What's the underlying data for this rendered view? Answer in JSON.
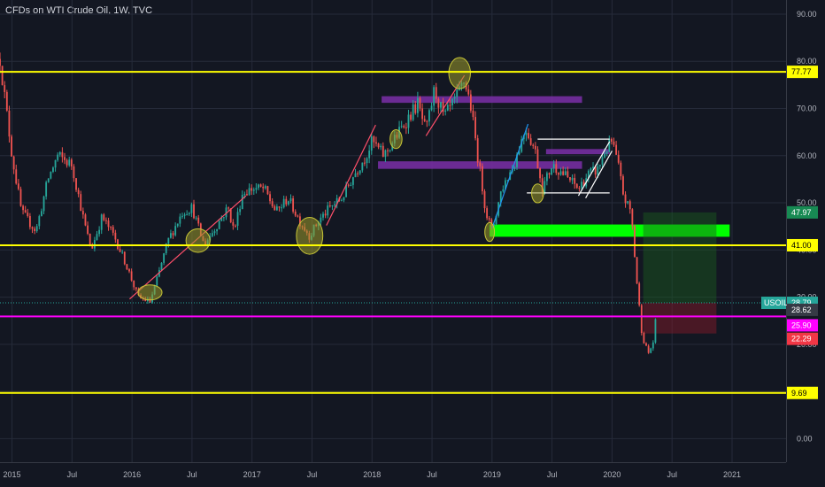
{
  "title": "CFDs on WTI Crude Oil, 1W, TVC",
  "chart_data": {
    "type": "candlestick",
    "symbol": "USOIL",
    "ylim": [
      -5,
      93
    ],
    "y_ticks": [
      0,
      10,
      20,
      30,
      40,
      50,
      60,
      70,
      80,
      90
    ],
    "y_tick_labels": [
      "0.00",
      "10.00",
      "20.00",
      "30.00",
      "40.00",
      "50.00",
      "60.00",
      "70.00",
      "80.00",
      "90.00"
    ],
    "x_range": [
      2014.9,
      2021.45
    ],
    "x_ticks": [
      2015,
      2015.5,
      2016,
      2016.5,
      2017,
      2017.5,
      2018,
      2018.5,
      2019,
      2019.5,
      2020,
      2020.5,
      2021
    ],
    "x_tick_labels": [
      "2015",
      "Jul",
      "2016",
      "Jul",
      "2017",
      "Jul",
      "2018",
      "Jul",
      "2019",
      "Jul",
      "2020",
      "Jul",
      "2021"
    ],
    "price_path": [
      [
        2014.9,
        80.5
      ],
      [
        2015.0,
        60
      ],
      [
        2015.08,
        48
      ],
      [
        2015.2,
        44
      ],
      [
        2015.3,
        55
      ],
      [
        2015.38,
        60
      ],
      [
        2015.5,
        58
      ],
      [
        2015.6,
        46
      ],
      [
        2015.66,
        40
      ],
      [
        2015.75,
        47
      ],
      [
        2015.85,
        43
      ],
      [
        2015.95,
        37
      ],
      [
        2016.05,
        30
      ],
      [
        2016.15,
        29
      ],
      [
        2016.2,
        33
      ],
      [
        2016.3,
        42
      ],
      [
        2016.42,
        48
      ],
      [
        2016.5,
        49
      ],
      [
        2016.6,
        41
      ],
      [
        2016.7,
        45
      ],
      [
        2016.8,
        49
      ],
      [
        2016.85,
        44
      ],
      [
        2016.92,
        52
      ],
      [
        2017.0,
        53
      ],
      [
        2017.1,
        53
      ],
      [
        2017.2,
        48
      ],
      [
        2017.3,
        51
      ],
      [
        2017.4,
        46
      ],
      [
        2017.48,
        43
      ],
      [
        2017.55,
        46
      ],
      [
        2017.65,
        49
      ],
      [
        2017.75,
        51
      ],
      [
        2017.85,
        56
      ],
      [
        2017.95,
        60
      ],
      [
        2018.0,
        63
      ],
      [
        2018.1,
        60
      ],
      [
        2018.2,
        64
      ],
      [
        2018.3,
        68
      ],
      [
        2018.38,
        71
      ],
      [
        2018.45,
        65
      ],
      [
        2018.52,
        74
      ],
      [
        2018.6,
        68
      ],
      [
        2018.7,
        72
      ],
      [
        2018.77,
        76
      ],
      [
        2018.82,
        71
      ],
      [
        2018.88,
        60
      ],
      [
        2018.95,
        48
      ],
      [
        2019.0,
        44
      ],
      [
        2019.08,
        53
      ],
      [
        2019.18,
        58
      ],
      [
        2019.28,
        66
      ],
      [
        2019.36,
        61
      ],
      [
        2019.42,
        53
      ],
      [
        2019.5,
        58
      ],
      [
        2019.56,
        57
      ],
      [
        2019.64,
        55
      ],
      [
        2019.72,
        53
      ],
      [
        2019.8,
        56
      ],
      [
        2019.88,
        57
      ],
      [
        2019.94,
        61
      ],
      [
        2020.0,
        63
      ],
      [
        2020.05,
        58
      ],
      [
        2020.1,
        51
      ],
      [
        2020.16,
        48
      ],
      [
        2020.2,
        35
      ],
      [
        2020.25,
        22
      ],
      [
        2020.3,
        18
      ],
      [
        2020.34,
        20
      ],
      [
        2020.38,
        28.79
      ]
    ],
    "horizontal_levels": [
      {
        "price": 77.77,
        "label": "77.77",
        "color": "#ffff00"
      },
      {
        "price": 41.0,
        "label": "41.00",
        "color": "#ffff00"
      },
      {
        "price": 9.69,
        "label": "9.69",
        "color": "#ffff00"
      },
      {
        "price": 25.9,
        "label": "25.90",
        "color": "#ff00ff"
      }
    ],
    "price_tags": [
      {
        "price": 47.97,
        "label": "47.97",
        "color": "#178a53",
        "text_color": "#ffffff"
      },
      {
        "price": 28.79,
        "label": "28.79",
        "color": "#26a69a",
        "text_color": "#ffffff",
        "symbol": "USOIL"
      },
      {
        "price": 28.62,
        "label": "28.62",
        "color": "#363a45",
        "text_color": "#ffffff"
      },
      {
        "price": 25.9,
        "label": "25.90",
        "color": "#ff00ff",
        "text_color": "#ffffff"
      },
      {
        "price": 22.29,
        "label": "22.29",
        "color": "#f23645",
        "text_color": "#ffffff"
      }
    ],
    "zones": [
      {
        "x0": 2018.08,
        "x1": 2019.75,
        "y0": 71.2,
        "y1": 72.6,
        "color": "#7b2fa8"
      },
      {
        "x0": 2018.05,
        "x1": 2019.75,
        "y0": 57.2,
        "y1": 58.8,
        "color": "#7b2fa8"
      },
      {
        "x0": 2019.45,
        "x1": 2019.98,
        "y0": 60.3,
        "y1": 61.4,
        "color": "#7b2fa8"
      },
      {
        "x0": 2018.98,
        "x1": 2020.98,
        "y0": 42.8,
        "y1": 45.4,
        "color": "#00ff00"
      }
    ],
    "position": {
      "x0": 2020.26,
      "x1": 2020.87,
      "entry": 28.79,
      "target": 47.97,
      "stop": 22.29
    },
    "trend_lines": [
      {
        "x0": 2015.98,
        "y0": 29.6,
        "x1": 2016.95,
        "y1": 51.5,
        "color": "#ff4f6a"
      },
      {
        "x0": 2017.62,
        "y0": 45.2,
        "x1": 2018.03,
        "y1": 66.5,
        "color": "#ff4f6a"
      },
      {
        "x0": 2018.45,
        "y0": 64.2,
        "x1": 2018.77,
        "y1": 77.0,
        "color": "#ff4f6a"
      },
      {
        "x0": 2019.0,
        "y0": 44.6,
        "x1": 2019.3,
        "y1": 66.7,
        "color": "#2196f3"
      },
      {
        "x0": 2019.38,
        "y0": 63.5,
        "x1": 2019.98,
        "y1": 63.5,
        "color": "#ffffff"
      },
      {
        "x0": 2019.29,
        "y0": 52.1,
        "x1": 2019.98,
        "y1": 52.1,
        "color": "#ffffff"
      },
      {
        "x0": 2019.72,
        "y0": 51.5,
        "x1": 2019.98,
        "y1": 63.0,
        "color": "#ffffff"
      },
      {
        "x0": 2019.78,
        "y0": 51.0,
        "x1": 2020.0,
        "y1": 61.0,
        "color": "#ffffff"
      }
    ],
    "highlight_ellipses": [
      {
        "x": 2016.15,
        "y": 31.0,
        "rx": 0.1,
        "ry": 1.6
      },
      {
        "x": 2016.55,
        "y": 42.0,
        "rx": 0.1,
        "ry": 2.5
      },
      {
        "x": 2017.48,
        "y": 43.0,
        "rx": 0.11,
        "ry": 3.9
      },
      {
        "x": 2018.2,
        "y": 63.5,
        "rx": 0.05,
        "ry": 2.0
      },
      {
        "x": 2018.73,
        "y": 77.5,
        "rx": 0.09,
        "ry": 3.3
      },
      {
        "x": 2018.98,
        "y": 43.8,
        "rx": 0.04,
        "ry": 2.0
      },
      {
        "x": 2019.38,
        "y": 52.0,
        "rx": 0.05,
        "ry": 2.0
      }
    ],
    "colors": {
      "up": "#26a69a",
      "down": "#ef5350",
      "background": "#131722",
      "grid": "#262b3a"
    }
  }
}
